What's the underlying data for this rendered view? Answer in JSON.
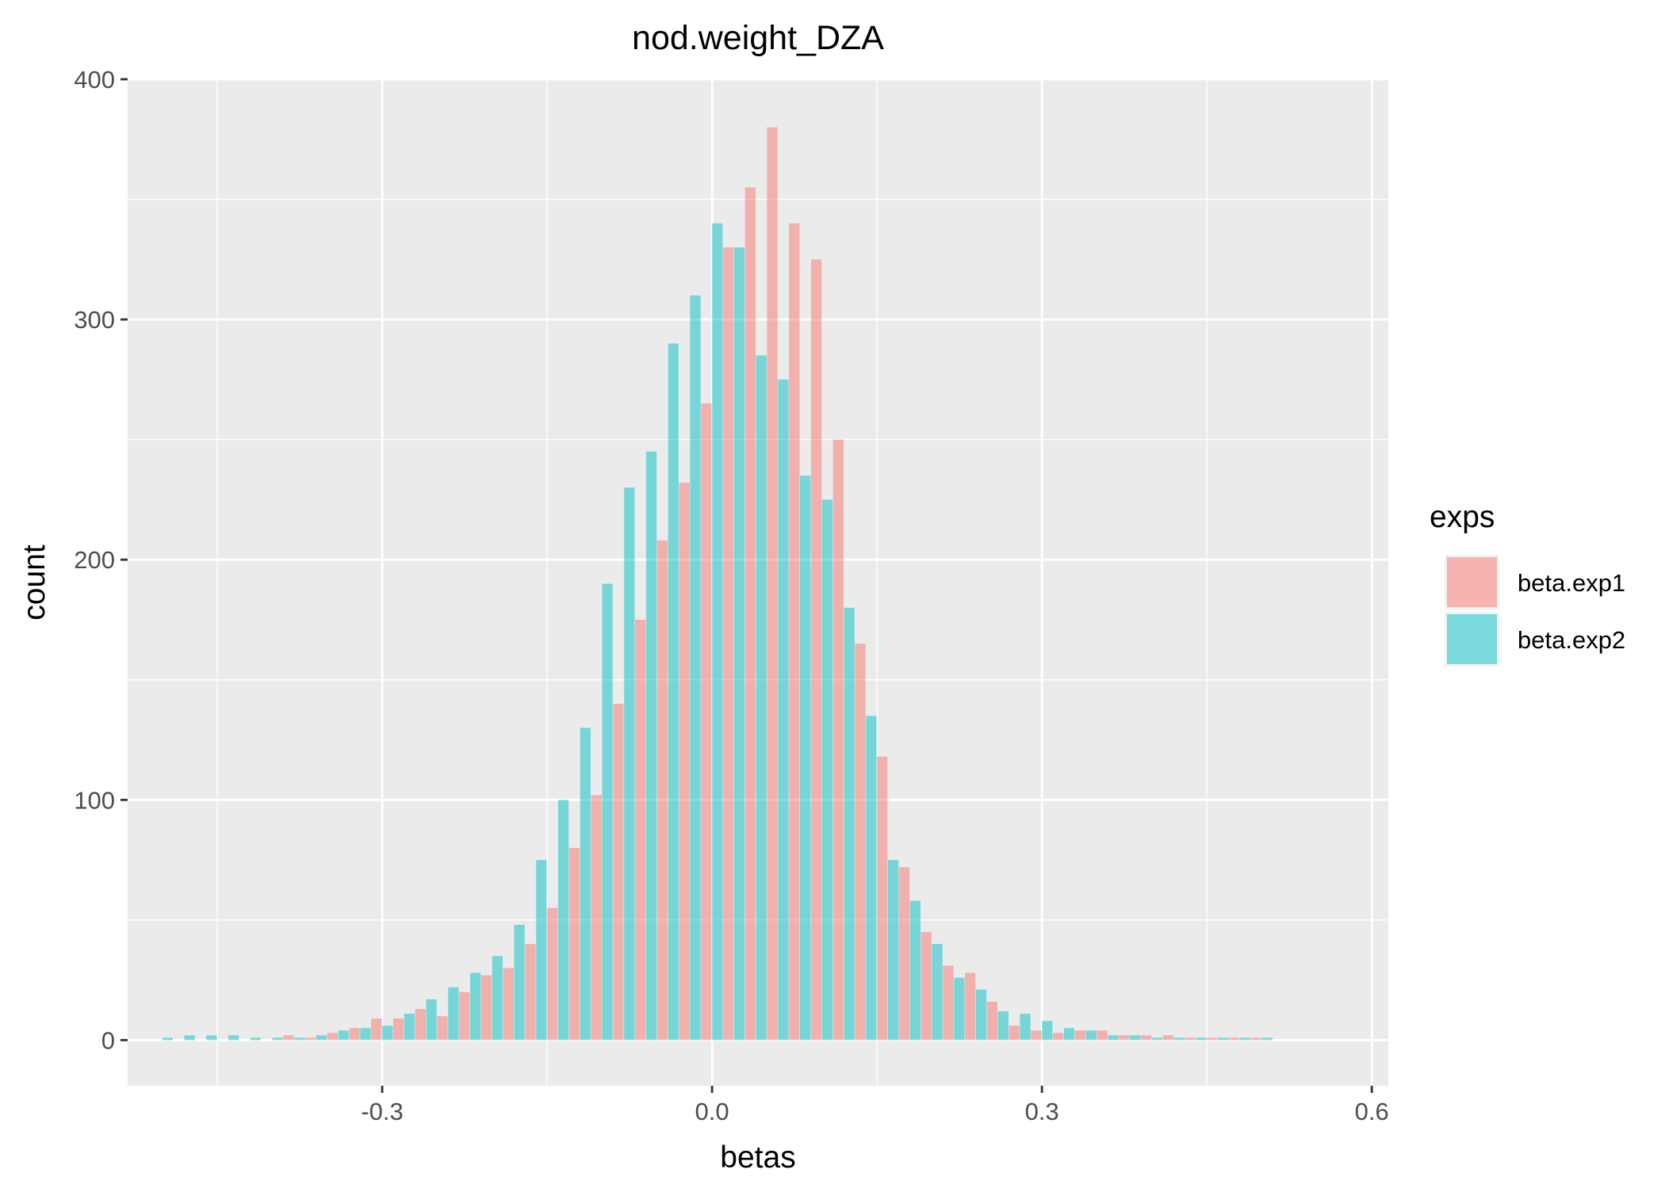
{
  "chart_data": {
    "type": "bar",
    "title": "nod.weight_DZA",
    "xlabel": "betas",
    "ylabel": "count",
    "xlim": [
      -0.5315,
      0.615
    ],
    "ylim": [
      -19,
      400
    ],
    "x_ticks": [
      -0.3,
      0.0,
      0.3,
      0.6
    ],
    "x_tick_labels": [
      "-0.3",
      "0.0",
      "0.3",
      "0.6"
    ],
    "y_ticks": [
      0,
      100,
      200,
      300,
      400
    ],
    "y_tick_labels": [
      "0",
      "100",
      "200",
      "300",
      "400"
    ],
    "grid": true,
    "legend": {
      "title": "exps",
      "position": "right"
    },
    "bin_width": 0.02,
    "bin_start": -0.51,
    "series": [
      {
        "name": "beta.exp1",
        "color": "#F8766D",
        "values": [
          0,
          0,
          0,
          0,
          0,
          0,
          2,
          1,
          3,
          5,
          9,
          9,
          13,
          10,
          20,
          27,
          30,
          40,
          55,
          80,
          102,
          140,
          175,
          208,
          232,
          265,
          330,
          355,
          380,
          340,
          325,
          250,
          165,
          118,
          72,
          45,
          31,
          28,
          16,
          6,
          4,
          3,
          4,
          4,
          2,
          2,
          2,
          1,
          1,
          1,
          1,
          0,
          0
        ]
      },
      {
        "name": "beta.exp2",
        "color": "#00BFC4",
        "values": [
          1,
          2,
          2,
          2,
          1,
          1,
          1,
          2,
          4,
          5,
          6,
          11,
          17,
          22,
          28,
          35,
          48,
          75,
          100,
          130,
          190,
          230,
          245,
          290,
          310,
          340,
          330,
          285,
          275,
          235,
          225,
          180,
          135,
          75,
          58,
          40,
          26,
          21,
          12,
          11,
          8,
          5,
          4,
          2,
          2,
          1,
          1,
          1,
          1,
          1,
          1,
          0,
          0
        ]
      }
    ]
  }
}
